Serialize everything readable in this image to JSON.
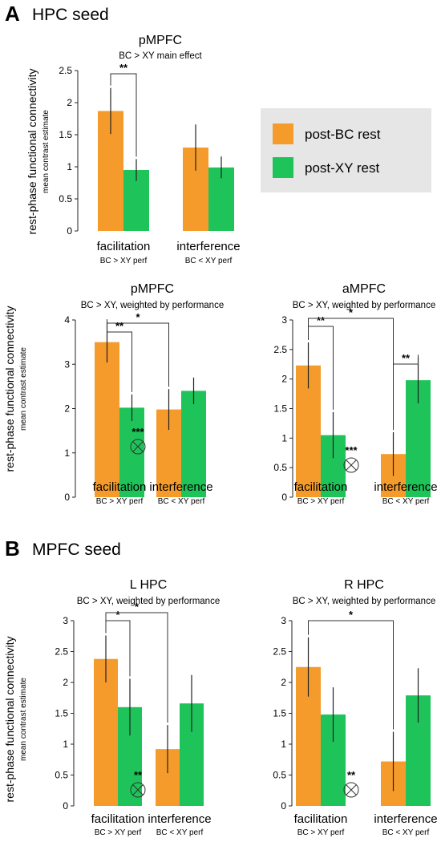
{
  "figure": {
    "section_a": {
      "letter": "A",
      "title": "HPC seed"
    },
    "section_b": {
      "letter": "B",
      "title": "MPFC seed"
    },
    "ylabel": "rest-phase functional connectivity",
    "ylabel_sub": "mean contrast estimate",
    "legend": {
      "items": [
        {
          "label": "post-BC rest",
          "color": "#f59b2b"
        },
        {
          "label": "post-XY rest",
          "color": "#1ec35a"
        }
      ]
    },
    "colors": {
      "orange": "#f59b2b",
      "green": "#1ec35a",
      "legend_bg": "#e6e6e6"
    }
  },
  "chart_data": [
    {
      "type": "bar",
      "title": "pMPFC",
      "subtitle": "BC > XY main effect",
      "categories": [
        "facilitation",
        "interference"
      ],
      "category_sub": [
        "BC > XY perf",
        "BC < XY perf"
      ],
      "series": [
        {
          "name": "post-BC rest",
          "values": [
            1.87,
            1.3
          ],
          "errors": [
            0.36,
            0.36
          ]
        },
        {
          "name": "post-XY rest",
          "values": [
            0.95,
            0.99
          ],
          "errors": [
            0.17,
            0.17
          ]
        }
      ],
      "ylim": [
        0,
        2.5
      ],
      "yticks": [
        "0",
        "0.5",
        "1",
        "1.5",
        "2",
        "2.5"
      ],
      "significance": [
        {
          "label": "**",
          "from": "facilitation/post-BC rest",
          "to": "facilitation/post-XY rest"
        }
      ],
      "marker": null
    },
    {
      "type": "bar",
      "title": "pMPFC",
      "subtitle": "BC > XY, weighted by performance",
      "categories": [
        "facilitation",
        "interference"
      ],
      "category_sub": [
        "BC > XY perf",
        "BC < XY perf"
      ],
      "series": [
        {
          "name": "post-BC rest",
          "values": [
            3.5,
            1.98
          ],
          "errors": [
            0.46,
            0.46
          ]
        },
        {
          "name": "post-XY rest",
          "values": [
            2.02,
            2.4
          ],
          "errors": [
            0.3,
            0.3
          ]
        }
      ],
      "ylim": [
        0,
        4
      ],
      "yticks": [
        "0",
        "1",
        "2",
        "3",
        "4"
      ],
      "significance": [
        {
          "label": "**",
          "from": "facilitation/post-BC rest",
          "to": "facilitation/post-XY rest"
        },
        {
          "label": "*",
          "from": "facilitation/post-BC rest",
          "to": "interference/post-BC rest"
        }
      ],
      "marker": {
        "label": "***"
      }
    },
    {
      "type": "bar",
      "title": "aMPFC",
      "subtitle": "BC > XY, weighted by performance",
      "categories": [
        "facilitation",
        "interference"
      ],
      "category_sub": [
        "BC > XY perf",
        "BC < XY perf"
      ],
      "series": [
        {
          "name": "post-BC rest",
          "values": [
            2.23,
            0.73
          ],
          "errors": [
            0.39,
            0.37
          ]
        },
        {
          "name": "post-XY rest",
          "values": [
            1.05,
            1.98
          ],
          "errors": [
            0.39,
            0.39
          ]
        }
      ],
      "ylim": [
        0,
        3
      ],
      "yticks": [
        "0",
        "0.5",
        "1",
        "1.5",
        "2",
        "2.5",
        "3"
      ],
      "significance": [
        {
          "label": "**",
          "from": "facilitation/post-BC rest",
          "to": "facilitation/post-XY rest"
        },
        {
          "label": "*",
          "from": "facilitation/post-BC rest",
          "to": "interference/post-BC rest"
        },
        {
          "label": "**",
          "from": "interference/post-BC rest",
          "to": "interference/post-XY rest"
        }
      ],
      "marker": {
        "label": "***"
      }
    },
    {
      "type": "bar",
      "title": "L HPC",
      "subtitle": "BC > XY, weighted by performance",
      "categories": [
        "facilitation",
        "interference"
      ],
      "category_sub": [
        "BC > XY perf",
        "BC < XY perf"
      ],
      "series": [
        {
          "name": "post-BC rest",
          "values": [
            2.38,
            0.92
          ],
          "errors": [
            0.38,
            0.39
          ]
        },
        {
          "name": "post-XY rest",
          "values": [
            1.6,
            1.66
          ],
          "errors": [
            0.46,
            0.46
          ]
        }
      ],
      "ylim": [
        0,
        3
      ],
      "yticks": [
        "0",
        "0.5",
        "1",
        "1.5",
        "2",
        "2.5",
        "3"
      ],
      "significance": [
        {
          "label": "*",
          "from": "facilitation/post-BC rest",
          "to": "facilitation/post-XY rest"
        },
        {
          "label": "*",
          "from": "facilitation/post-BC rest",
          "to": "interference/post-BC rest"
        }
      ],
      "marker": {
        "label": "**"
      }
    },
    {
      "type": "bar",
      "title": "R HPC",
      "subtitle": "BC > XY, weighted by performance",
      "categories": [
        "facilitation",
        "interference"
      ],
      "category_sub": [
        "BC > XY perf",
        "BC < XY perf"
      ],
      "series": [
        {
          "name": "post-BC rest",
          "values": [
            2.25,
            0.72
          ],
          "errors": [
            0.48,
            0.48
          ]
        },
        {
          "name": "post-XY rest",
          "values": [
            1.48,
            1.79
          ],
          "errors": [
            0.44,
            0.44
          ]
        }
      ],
      "ylim": [
        0,
        3
      ],
      "yticks": [
        "0",
        "0.5",
        "1",
        "1.5",
        "2",
        "2.5",
        "3"
      ],
      "significance": [
        {
          "label": "*",
          "from": "facilitation/post-BC rest",
          "to": "interference/post-BC rest"
        }
      ],
      "marker": {
        "label": "**"
      }
    }
  ]
}
